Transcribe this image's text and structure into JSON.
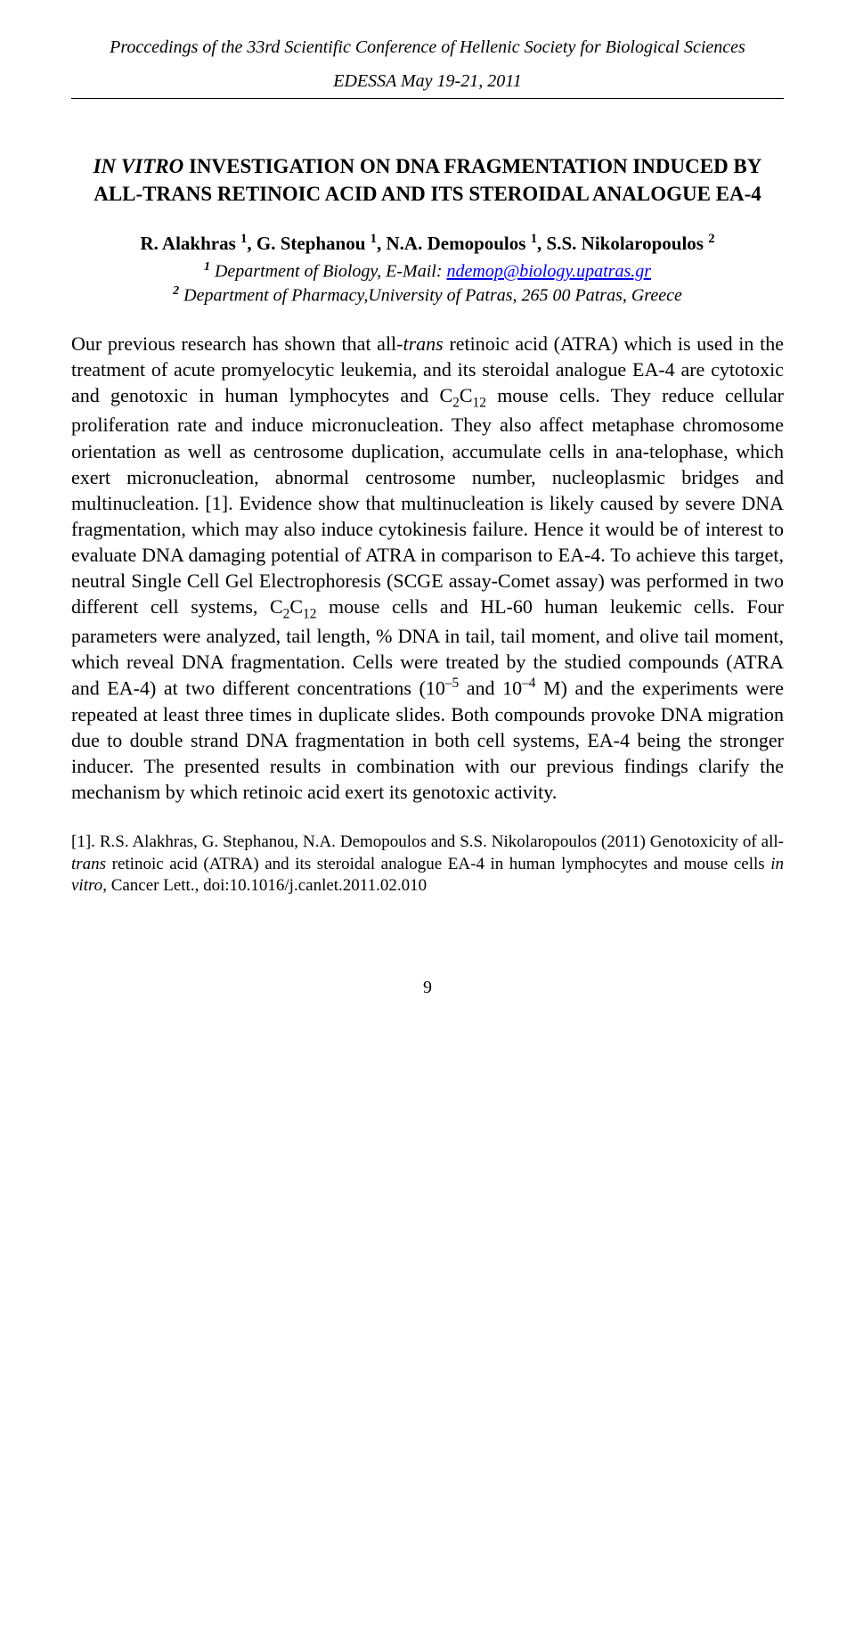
{
  "header": {
    "line1": "Proccedings of the 33rd Scientific Conference of Hellenic Society for Biological Sciences",
    "line2": "EDESSA May 19-21, 2011"
  },
  "title": {
    "prefix": "IN VITRO",
    "rest": " INVESTIGATION ON DNA FRAGMENTATION INDUCED BY ALL-TRANS RETINOIC ACID AND ITS STEROIDAL ANALOGUE EA-4"
  },
  "authors": {
    "a1": "R. Alakhras ",
    "s1": "1",
    "a2": ", G. Stephanou ",
    "s2": "1",
    "a3": ", N.A. Demopoulos ",
    "s3": "1",
    "a4": ", S.S. Nikolaropoulos ",
    "s4": "2"
  },
  "affiliations": {
    "aff1_sup": "1",
    "aff1_text": " Department of Biology, E-Mail: ",
    "aff1_email": "ndemop@biology.upatras.gr",
    "aff2_sup": "2",
    "aff2_text": " Department of Pharmacy,University of Patras, 265 00 Patras, Greece"
  },
  "abstract": {
    "p1a": "Our previous research has shown that all-",
    "p1_italic1": "trans",
    "p1b": " retinoic acid (ATRA) which is used in the treatment of acute promyelocytic leukemia, and its steroidal analogue EA-4 are cytotoxic and genotoxic in human lymphocytes and C",
    "p1_sub1": "2",
    "p1c": "C",
    "p1_sub2": "12",
    "p1d": " mouse cells. They reduce cellular proliferation rate and induce micronucleation. They also affect metaphase chromosome orientation as well as centrosome duplication, accumulate cells in ana-telophase, which exert micronucleation, abnormal centrosome number, nucleoplasmic bridges and multinucleation. [1]. Evidence show that multinucleation is likely caused by severe DNA fragmentation, which may also induce cytokinesis failure. Hence it would be of interest to evaluate DNA damaging potential of ATRA in comparison to EA-4. To achieve this target, neutral Single Cell Gel Electrophoresis (SCGE assay-Comet assay) was performed in two different cell systems, C",
    "p1_sub3": "2",
    "p1e": "C",
    "p1_sub4": "12",
    "p1f": " mouse cells and HL-60 human leukemic cells. Four parameters were analyzed, tail length, % DNA in tail, tail moment, and olive tail moment, which reveal DNA fragmentation. Cells were treated by the studied compounds (ATRA and EA-4) at two different concentrations (10",
    "p1_sup1": "–5",
    "p1g": " and 10",
    "p1_sup2": "–4",
    "p1h": " M) and the experiments were repeated at least three times in duplicate slides. Both compounds provoke DNA migration due to double strand DNA fragmentation in both cell systems, EA-4 being the stronger inducer. The presented results in combination with our previous findings clarify the mechanism by which retinoic acid exert its genotoxic activity."
  },
  "reference": {
    "label": "[1]. R.S. Alakhras, G. Stephanou, N.A. Demopoulos and S.S. Nikolaropoulos (2011) Genotoxicity of all-",
    "italic1": "trans",
    "mid": " retinoic acid (ATRA) and its steroidal analogue EA-4 in human lymphocytes and mouse cells ",
    "italic2": "in vitro",
    "rest": ", Cancer Lett., doi:10.1016/j.canlet.2011.02.010"
  },
  "page_number": "9"
}
